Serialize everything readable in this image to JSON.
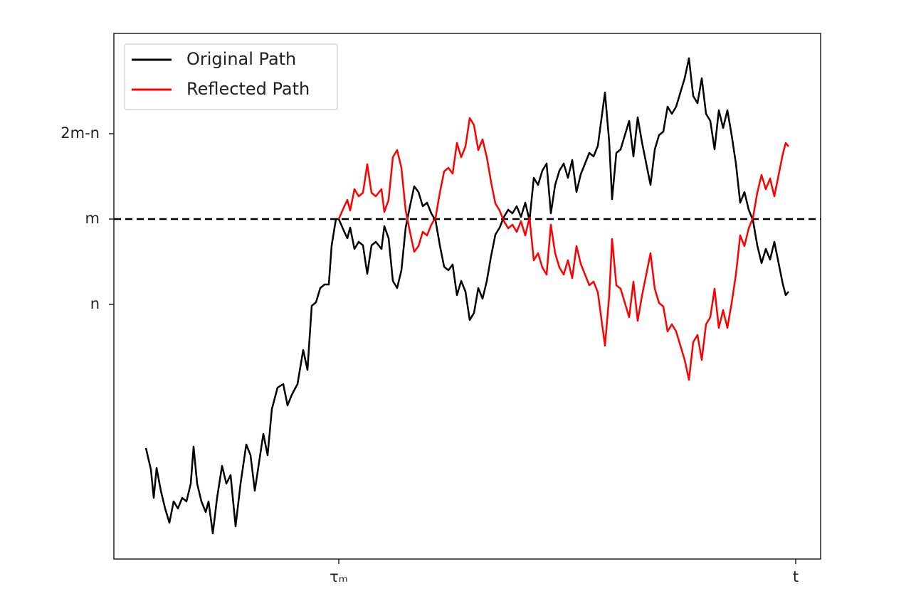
{
  "chart_data": {
    "type": "line",
    "x": [
      45,
      52,
      56,
      60,
      66,
      72,
      78,
      84,
      90,
      96,
      102,
      108,
      112,
      117,
      123,
      129,
      133,
      139,
      145,
      152,
      158,
      164,
      171,
      178,
      186,
      192,
      198,
      204,
      210,
      216,
      222,
      230,
      238,
      244,
      250,
      258,
      266,
      272,
      278,
      284,
      290,
      296,
      302,
      306,
      312,
      316,
      322,
      328,
      332,
      338,
      344,
      350,
      356,
      362,
      368,
      376,
      380,
      386,
      392,
      398,
      404,
      410,
      416,
      422,
      428,
      434,
      440,
      446,
      452,
      458,
      464,
      470,
      476,
      482,
      488,
      494,
      500,
      506,
      512,
      518,
      524,
      530,
      536,
      542,
      548,
      554,
      560,
      566,
      572,
      578,
      584,
      590,
      596,
      602,
      608,
      614,
      620,
      626,
      632,
      638,
      644,
      650,
      656,
      662,
      668,
      674,
      680,
      686,
      690,
      696,
      700,
      706,
      712,
      718,
      724,
      730,
      736,
      742,
      748,
      754,
      760,
      766,
      772,
      778,
      784,
      790,
      796,
      802,
      808,
      814,
      820,
      826,
      832,
      838,
      844,
      850,
      856,
      862,
      868,
      874,
      880,
      886,
      892,
      898,
      904,
      910,
      916,
      922,
      928,
      934,
      940,
      944,
      948
    ],
    "series": [
      {
        "name": "Original Path",
        "color": "#000000",
        "values": [
          156,
          126,
          86,
          128,
          96,
          71,
          51,
          81,
          71,
          86,
          81,
          106,
          158,
          106,
          81,
          66,
          81,
          36,
          86,
          131,
          106,
          118,
          46,
          106,
          161,
          146,
          96,
          136,
          176,
          146,
          211,
          241,
          246,
          216,
          231,
          246,
          294,
          266,
          356,
          361,
          381,
          386,
          386,
          441,
          478,
          478,
          464,
          451,
          466,
          436,
          446,
          441,
          401,
          441,
          446,
          436,
          468,
          451,
          391,
          381,
          406,
          466,
          496,
          524,
          516,
          496,
          501,
          486,
          476,
          441,
          411,
          406,
          414,
          371,
          391,
          376,
          336,
          346,
          381,
          366,
          391,
          426,
          456,
          466,
          481,
          491,
          486,
          496,
          481,
          501,
          476,
          536,
          526,
          546,
          556,
          486,
          526,
          546,
          556,
          536,
          561,
          516,
          541,
          556,
          571,
          566,
          581,
          626,
          656,
          586,
          506,
          571,
          576,
          596,
          616,
          566,
          621,
          586,
          556,
          526,
          576,
          596,
          601,
          636,
          626,
          636,
          656,
          676,
          704,
          651,
          641,
          676,
          626,
          616,
          576,
          631,
          606,
          631,
          596,
          556,
          501,
          516,
          491,
          476,
          441,
          416,
          436,
          421,
          446,
          416,
          386,
          371,
          376
        ]
      },
      {
        "name": "Reflected Path",
        "color": "#ff0000",
        "values": [
          null,
          null,
          null,
          null,
          null,
          null,
          null,
          null,
          null,
          null,
          null,
          null,
          null,
          null,
          null,
          null,
          null,
          null,
          null,
          null,
          null,
          null,
          null,
          null,
          null,
          null,
          null,
          null,
          null,
          null,
          null,
          null,
          null,
          null,
          null,
          null,
          null,
          null,
          null,
          null,
          null,
          null,
          null,
          null,
          null,
          478,
          492,
          505,
          490,
          520,
          510,
          515,
          555,
          515,
          510,
          520,
          488,
          505,
          565,
          575,
          550,
          490,
          460,
          432,
          440,
          460,
          455,
          470,
          480,
          515,
          545,
          550,
          542,
          585,
          565,
          580,
          620,
          610,
          575,
          590,
          565,
          530,
          500,
          490,
          475,
          465,
          470,
          460,
          475,
          455,
          480,
          420,
          430,
          410,
          400,
          470,
          430,
          410,
          400,
          420,
          395,
          440,
          415,
          400,
          385,
          390,
          375,
          330,
          300,
          370,
          450,
          385,
          380,
          360,
          340,
          390,
          335,
          370,
          400,
          430,
          380,
          360,
          355,
          320,
          330,
          320,
          300,
          280,
          252,
          305,
          315,
          280,
          330,
          340,
          380,
          325,
          350,
          325,
          360,
          400,
          455,
          440,
          465,
          480,
          515,
          540,
          520,
          535,
          510,
          540,
          570,
          585,
          580
        ]
      }
    ],
    "xlim": [
      0,
      993
    ],
    "ylim": [
      0,
      739
    ],
    "xticks": [
      {
        "value": 316,
        "label": "τₘ"
      },
      {
        "value": 958,
        "label": "t"
      }
    ],
    "yticks": [
      {
        "value": 358,
        "label": "n"
      },
      {
        "value": 478,
        "label": "m"
      },
      {
        "value": 598,
        "label": "2m-n"
      }
    ],
    "hline": {
      "y": 478,
      "color": "#000000",
      "style": "dashed"
    },
    "legend": "upper left"
  }
}
